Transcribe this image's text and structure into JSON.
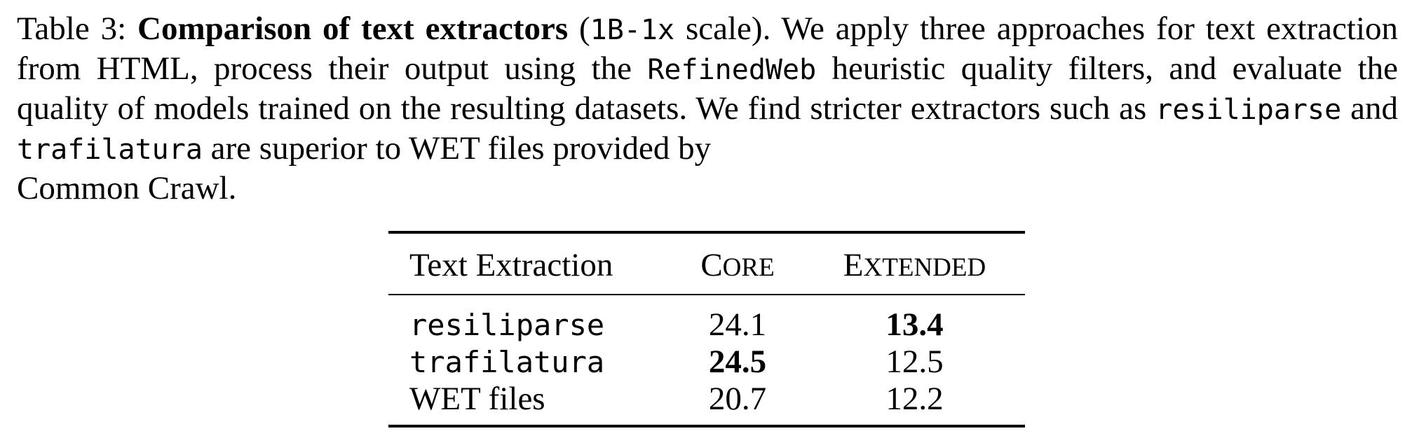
{
  "caption": {
    "label": "Table 3:",
    "title": "Comparison of text extractors",
    "scale_code": "1B-1x",
    "text_1": "scale). We apply three approaches for text extraction from HTML, process their output using the",
    "refinedweb_code": "RefinedWeb",
    "text_2": "heuristic quality filters, and evaluate the quality of models trained on the resulting datasets. We find stricter extractors such as",
    "resiliparse_code": "resiliparse",
    "text_and": "and",
    "trafilatura_code": "trafilatura",
    "text_3": "are superior to WET files provided by",
    "text_4": "Common Crawl."
  },
  "table": {
    "header": {
      "col1": "Text Extraction",
      "col2_first": "C",
      "col2_rest": "ORE",
      "col3_first": "E",
      "col3_rest": "XTENDED"
    },
    "rows": [
      {
        "method": "resiliparse",
        "core": "24.1",
        "extended": "13.4",
        "mono": true,
        "bold": "extended"
      },
      {
        "method": "trafilatura",
        "core": "24.5",
        "extended": "12.5",
        "mono": true,
        "bold": "core"
      },
      {
        "method": "WET files",
        "core": "20.7",
        "extended": "12.2",
        "mono": false,
        "bold": "none"
      }
    ]
  }
}
